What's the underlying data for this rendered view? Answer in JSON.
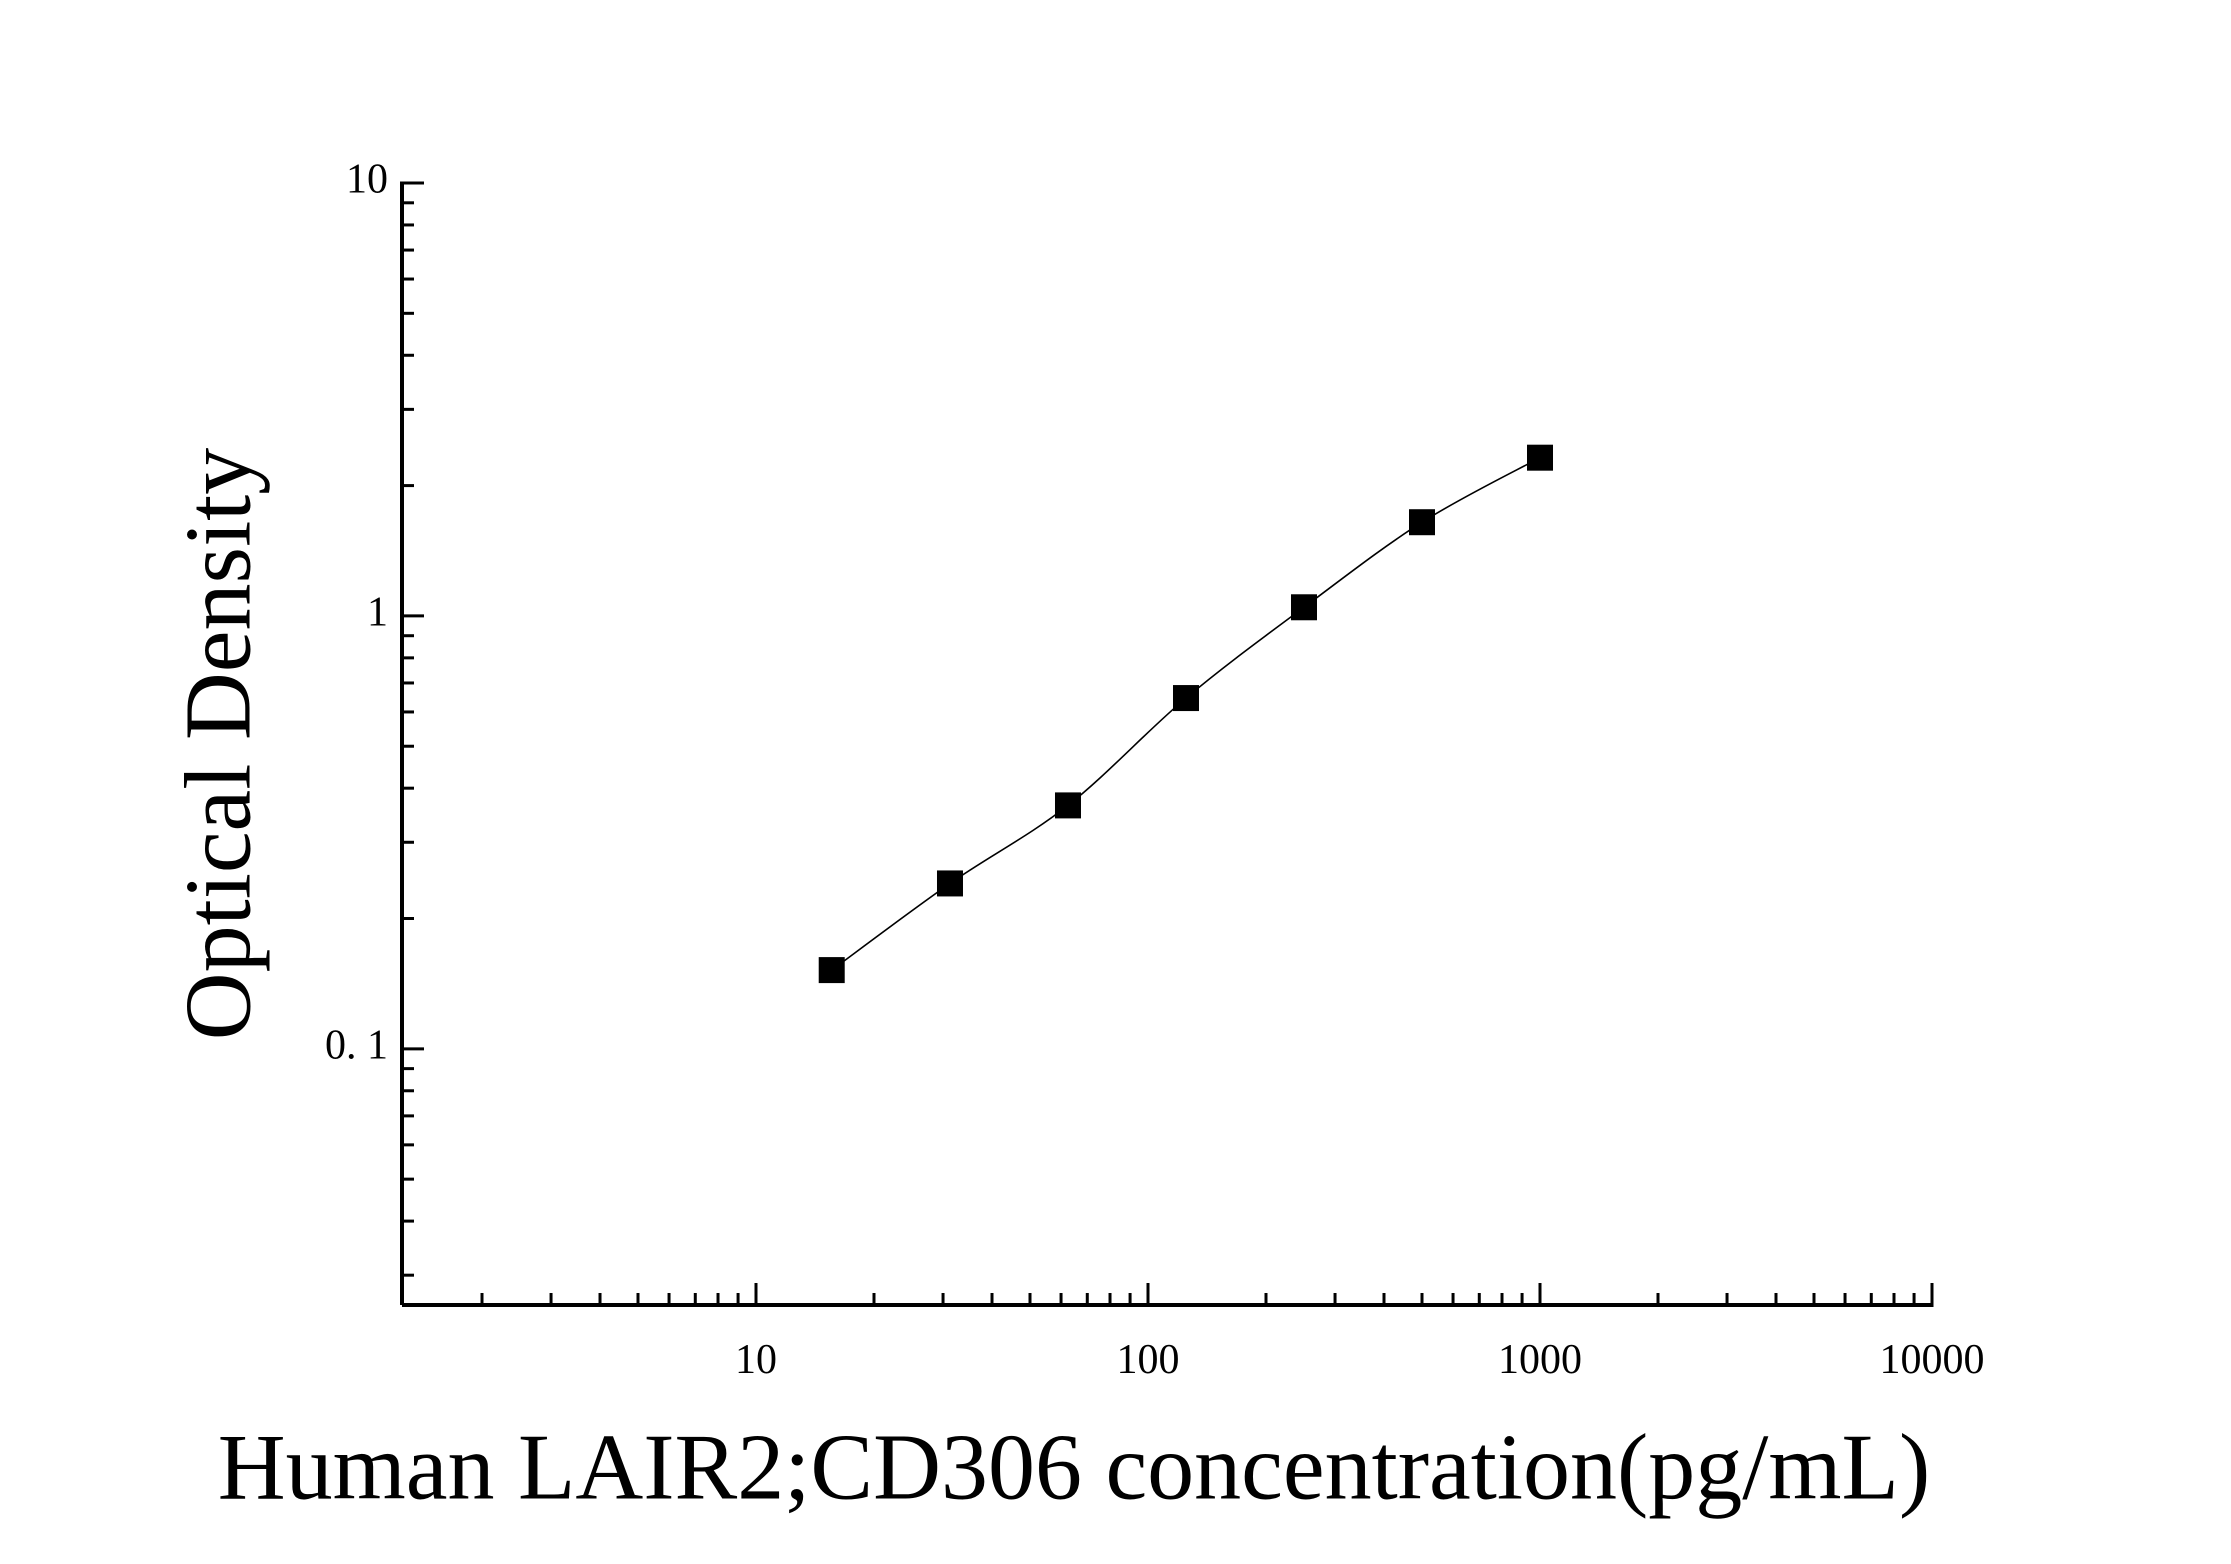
{
  "chart_data": {
    "type": "scatter",
    "x_label": "Human LAIR2;CD306 concentration(pg/mL)",
    "y_label": "Optical Density",
    "x_log": true,
    "y_log": true,
    "xlim": [
      1.25,
      10000
    ],
    "ylim": [
      0.0256,
      10
    ],
    "xticks": [
      10,
      100,
      1000,
      10000
    ],
    "yticks": [
      {
        "value": 0.1,
        "label": "0. 1"
      },
      1,
      10
    ],
    "grid": false,
    "series": [
      {
        "color": "#000000",
        "x": [
          15.6,
          31.25,
          62.5,
          125,
          250,
          500,
          1000
        ],
        "values": [
          0.152,
          0.241,
          0.365,
          0.646,
          1.047,
          1.646,
          2.32
        ]
      }
    ]
  }
}
